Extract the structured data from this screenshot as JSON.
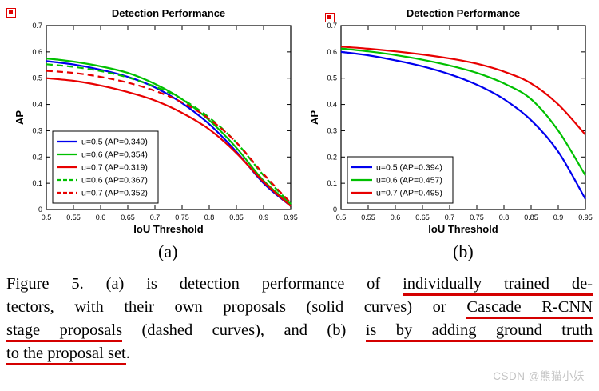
{
  "figure": {
    "sub_labels": {
      "a": "(a)",
      "b": "(b)"
    },
    "watermark": "CSDN @熊猫小妖",
    "caption": {
      "lines": [
        {
          "segments": [
            {
              "text": "Figure 5. (a) is detection performance of ",
              "u": false
            },
            {
              "text": "individually trained de-",
              "u": true
            }
          ]
        },
        {
          "segments": [
            {
              "text": "tectors, with their own proposals (solid curves) or ",
              "u": false
            },
            {
              "text": "Cascade R-CNN",
              "u": true
            }
          ]
        },
        {
          "segments": [
            {
              "text": "stage proposals",
              "u": true
            },
            {
              "text": " (dashed curves), and (b) ",
              "u": false
            },
            {
              "text": "is by adding ground truth",
              "u": true
            }
          ]
        },
        {
          "segments": [
            {
              "text": "to the proposal set",
              "u": true
            },
            {
              "text": ".",
              "u": false
            }
          ]
        }
      ]
    }
  },
  "chart_data": [
    {
      "type": "line",
      "title": "Detection Performance",
      "xlabel": "IoU Threshold",
      "ylabel": "AP",
      "xlim": [
        0.5,
        0.95
      ],
      "ylim": [
        0,
        0.7
      ],
      "grid": false,
      "legend_position": "lower-left",
      "x_ticks": [
        0.5,
        0.55,
        0.6,
        0.65,
        0.7,
        0.75,
        0.8,
        0.85,
        0.9,
        0.95
      ],
      "x_tick_labels": [
        "0.5",
        "0.55",
        "0.6",
        "0.65",
        "0.7",
        "0.75",
        "0.8",
        "0.85",
        "0.9",
        "0.95"
      ],
      "y_ticks": [
        0,
        0.1,
        0.2,
        0.3,
        0.4,
        0.5,
        0.6,
        0.7
      ],
      "y_tick_labels": [
        "0",
        "0.1",
        "0.2",
        "0.3",
        "0.4",
        "0.5",
        "0.6",
        "0.7"
      ],
      "x": [
        0.5,
        0.55,
        0.6,
        0.65,
        0.7,
        0.75,
        0.8,
        0.85,
        0.9,
        0.95
      ],
      "series": [
        {
          "name": "u=0.5 (AP=0.349)",
          "color": "#0000ee",
          "dash": false,
          "values": [
            0.565,
            0.552,
            0.532,
            0.505,
            0.465,
            0.405,
            0.325,
            0.22,
            0.1,
            0.013
          ]
        },
        {
          "name": "u=0.6 (AP=0.354)",
          "color": "#00c000",
          "dash": false,
          "values": [
            0.575,
            0.563,
            0.545,
            0.52,
            0.478,
            0.42,
            0.34,
            0.235,
            0.11,
            0.02
          ]
        },
        {
          "name": "u=0.7 (AP=0.319)",
          "color": "#e80000",
          "dash": false,
          "values": [
            0.5,
            0.49,
            0.472,
            0.447,
            0.415,
            0.368,
            0.305,
            0.215,
            0.105,
            0.013
          ]
        },
        {
          "name": "u=0.6 (AP=0.367)",
          "color": "#00c000",
          "dash": true,
          "values": [
            0.553,
            0.543,
            0.527,
            0.503,
            0.468,
            0.42,
            0.35,
            0.255,
            0.13,
            0.022
          ]
        },
        {
          "name": "u=0.7 (AP=0.352)",
          "color": "#e80000",
          "dash": true,
          "values": [
            0.528,
            0.52,
            0.505,
            0.483,
            0.452,
            0.408,
            0.345,
            0.255,
            0.135,
            0.025
          ]
        }
      ]
    },
    {
      "type": "line",
      "title": "Detection Performance",
      "xlabel": "IoU Threshold",
      "ylabel": "AP",
      "xlim": [
        0.5,
        0.95
      ],
      "ylim": [
        0,
        0.7
      ],
      "grid": false,
      "legend_position": "lower-left",
      "x_ticks": [
        0.5,
        0.55,
        0.6,
        0.65,
        0.7,
        0.75,
        0.8,
        0.85,
        0.9,
        0.95
      ],
      "x_tick_labels": [
        "0.5",
        "0.55",
        "0.6",
        "0.65",
        "0.7",
        "0.75",
        "0.8",
        "0.85",
        "0.9",
        "0.95"
      ],
      "y_ticks": [
        0,
        0.1,
        0.2,
        0.3,
        0.4,
        0.5,
        0.6,
        0.7
      ],
      "y_tick_labels": [
        "0",
        "0.1",
        "0.2",
        "0.3",
        "0.4",
        "0.5",
        "0.6",
        "0.7"
      ],
      "x": [
        0.5,
        0.55,
        0.6,
        0.65,
        0.7,
        0.75,
        0.8,
        0.85,
        0.9,
        0.95
      ],
      "series": [
        {
          "name": "u=0.5 (AP=0.394)",
          "color": "#0000ee",
          "dash": false,
          "values": [
            0.6,
            0.587,
            0.568,
            0.545,
            0.515,
            0.475,
            0.42,
            0.34,
            0.22,
            0.04
          ]
        },
        {
          "name": "u=0.6 (AP=0.457)",
          "color": "#00c000",
          "dash": false,
          "values": [
            0.613,
            0.602,
            0.588,
            0.57,
            0.548,
            0.52,
            0.48,
            0.42,
            0.3,
            0.13
          ]
        },
        {
          "name": "u=0.7 (AP=0.495)",
          "color": "#e80000",
          "dash": false,
          "values": [
            0.62,
            0.612,
            0.602,
            0.59,
            0.575,
            0.555,
            0.525,
            0.48,
            0.4,
            0.285
          ]
        }
      ]
    }
  ]
}
